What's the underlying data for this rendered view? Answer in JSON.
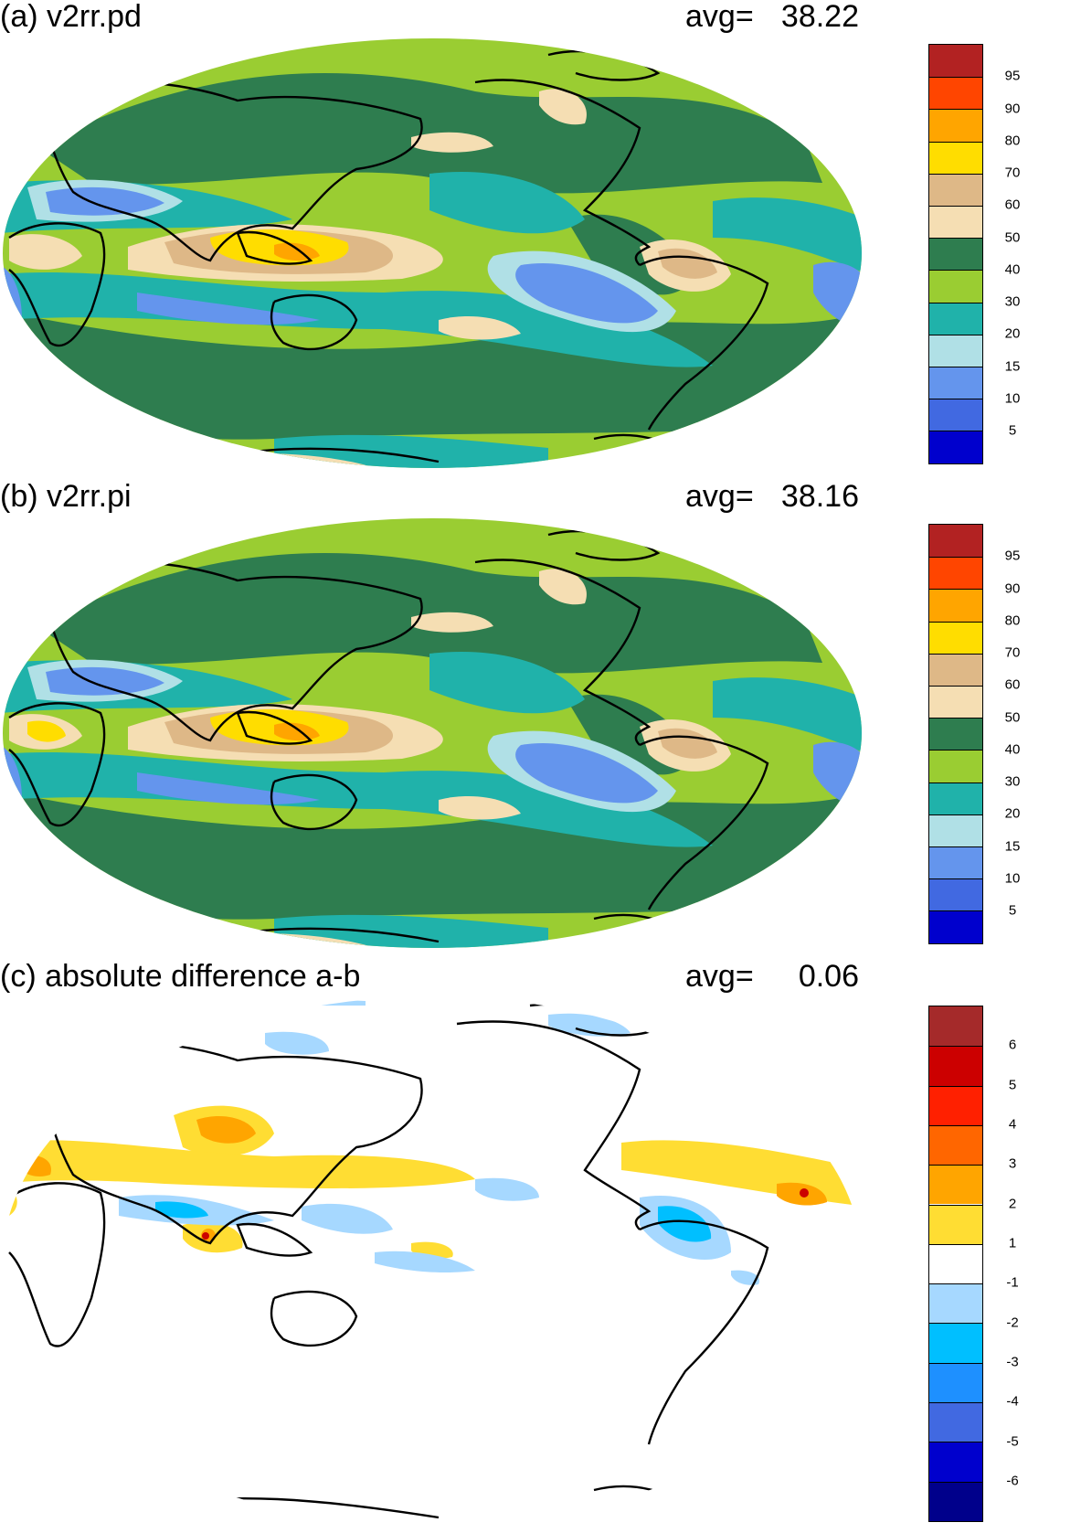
{
  "panels": [
    {
      "id": "a",
      "title": "(a) v2rr.pd",
      "avg_label": "avg=",
      "avg_value": "38.22",
      "colorbar": {
        "labels": [
          "95",
          "90",
          "80",
          "70",
          "60",
          "50",
          "40",
          "30",
          "20",
          "15",
          "10",
          "5"
        ],
        "colors": [
          "#b22222",
          "#ff4500",
          "#ffa500",
          "#ffdd00",
          "#deb887",
          "#f5deb3",
          "#2e7d4f",
          "#9acd32",
          "#20b2aa",
          "#b0e0e6",
          "#6495ed",
          "#4169e1",
          "#0000cd"
        ]
      }
    },
    {
      "id": "b",
      "title": "(b) v2rr.pi",
      "avg_label": "avg=",
      "avg_value": "38.16",
      "colorbar": {
        "labels": [
          "95",
          "90",
          "80",
          "70",
          "60",
          "50",
          "40",
          "30",
          "20",
          "15",
          "10",
          "5"
        ],
        "colors": [
          "#b22222",
          "#ff4500",
          "#ffa500",
          "#ffdd00",
          "#deb887",
          "#f5deb3",
          "#2e7d4f",
          "#9acd32",
          "#20b2aa",
          "#b0e0e6",
          "#6495ed",
          "#4169e1",
          "#0000cd"
        ]
      }
    },
    {
      "id": "c",
      "title": "(c) absolute difference a-b",
      "avg_label": "avg=",
      "avg_value": "0.06",
      "colorbar": {
        "labels": [
          "6",
          "5",
          "4",
          "3",
          "2",
          "1",
          "-1",
          "-2",
          "-3",
          "-4",
          "-5",
          "-6"
        ],
        "colors": [
          "#a52a2a",
          "#cc0000",
          "#ff2000",
          "#ff6600",
          "#ffa500",
          "#ffdd33",
          "#ffffff",
          "#a6d8ff",
          "#00bfff",
          "#1e90ff",
          "#4169e1",
          "#0000cd",
          "#00008b"
        ]
      }
    }
  ]
}
